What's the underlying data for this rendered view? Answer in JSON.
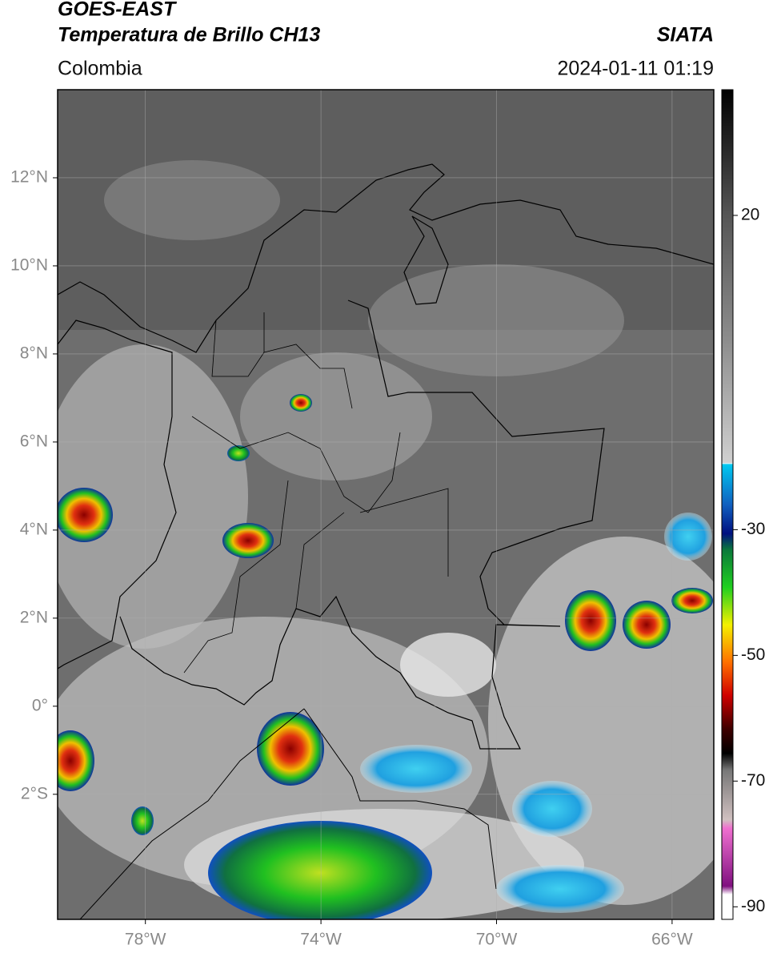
{
  "header": {
    "title": "GOES-EAST",
    "subtitle": "Temperatura de Brillo CH13",
    "source": "SIATA",
    "region": "Colombia",
    "datetime": "2024-01-11 01:19"
  },
  "map": {
    "xlim": [
      -80,
      -65.05
    ],
    "ylim": [
      -4.84,
      14
    ],
    "xticks": [
      {
        "value": -78,
        "label": "78°W"
      },
      {
        "value": -74,
        "label": "74°W"
      },
      {
        "value": -70,
        "label": "70°W"
      },
      {
        "value": -66,
        "label": "66°W"
      }
    ],
    "yticks": [
      {
        "value": 12,
        "label": "12°N"
      },
      {
        "value": 10,
        "label": "10°N"
      },
      {
        "value": 8,
        "label": "8°N"
      },
      {
        "value": 6,
        "label": "6°N"
      },
      {
        "value": 4,
        "label": "4°N"
      },
      {
        "value": 2,
        "label": "2°N"
      },
      {
        "value": 0,
        "label": "0°"
      },
      {
        "value": -2,
        "label": "2°S"
      }
    ],
    "grid": true,
    "colorbar": {
      "lim": [
        -92,
        40
      ],
      "ticks": [
        20,
        -30,
        -50,
        -70,
        -90
      ]
    }
  }
}
